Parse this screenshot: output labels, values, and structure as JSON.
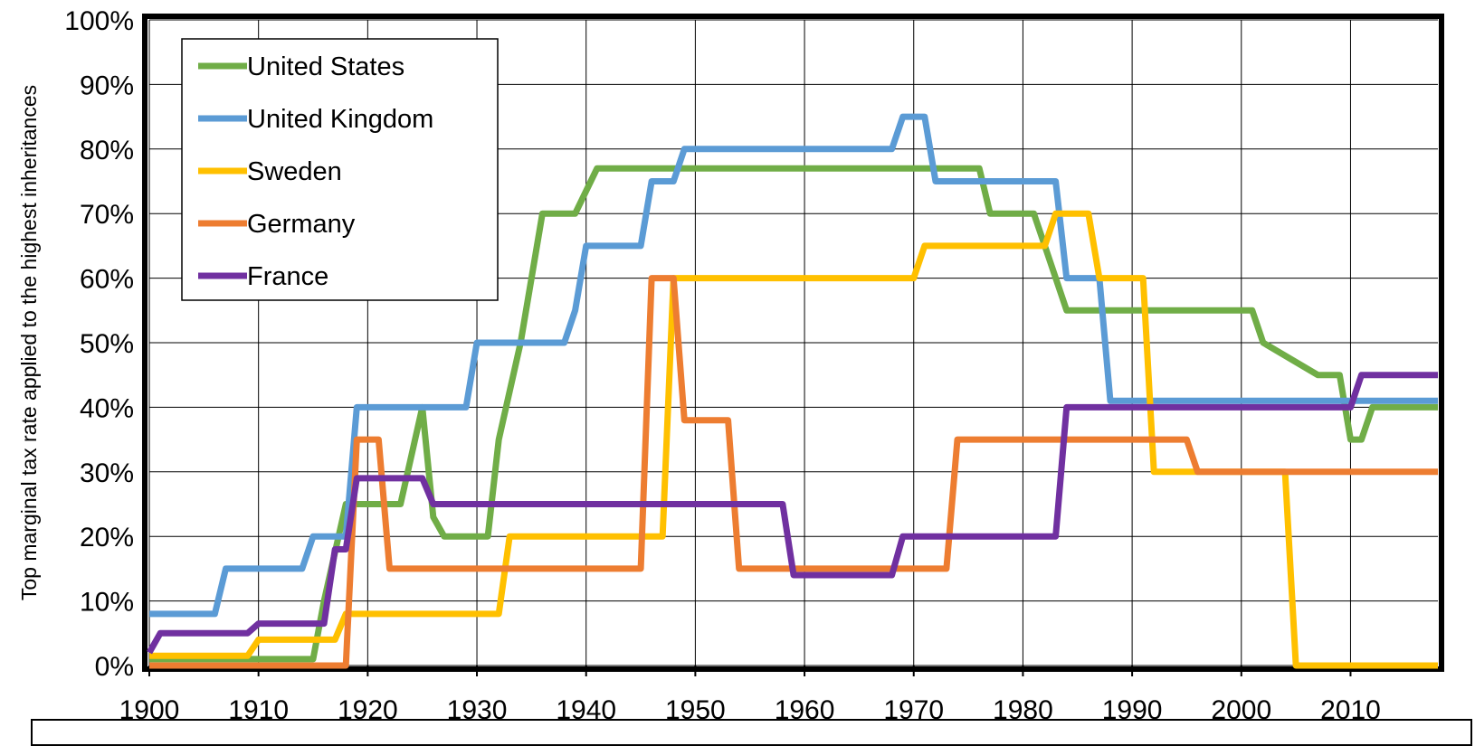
{
  "chart_data": {
    "type": "line",
    "title": "",
    "xlabel": "",
    "ylabel": "Top marginal tax rate applied to the highest inheritances",
    "xlim": [
      1900,
      2018
    ],
    "ylim": [
      0,
      1
    ],
    "x_ticks": [
      "1900",
      "1910",
      "1920",
      "1930",
      "1940",
      "1950",
      "1960",
      "1970",
      "1980",
      "1990",
      "2000",
      "2010"
    ],
    "y_ticks": [
      "0%",
      "10%",
      "20%",
      "30%",
      "40%",
      "50%",
      "60%",
      "70%",
      "80%",
      "90%",
      "100%"
    ],
    "grid": true,
    "legend_position": "top-left",
    "series": [
      {
        "name": "United States",
        "color": "#70AD47",
        "points": [
          [
            1900,
            0.01
          ],
          [
            1915,
            0.01
          ],
          [
            1916,
            0.1
          ],
          [
            1918,
            0.25
          ],
          [
            1923,
            0.25
          ],
          [
            1925,
            0.4
          ],
          [
            1926,
            0.23
          ],
          [
            1927,
            0.2
          ],
          [
            1931,
            0.2
          ],
          [
            1932,
            0.35
          ],
          [
            1934,
            0.5
          ],
          [
            1936,
            0.7
          ],
          [
            1939,
            0.7
          ],
          [
            1941,
            0.77
          ],
          [
            1976,
            0.77
          ],
          [
            1977,
            0.7
          ],
          [
            1981,
            0.7
          ],
          [
            1982,
            0.65
          ],
          [
            1984,
            0.55
          ],
          [
            2001,
            0.55
          ],
          [
            2002,
            0.5
          ],
          [
            2007,
            0.45
          ],
          [
            2009,
            0.45
          ],
          [
            2010,
            0.35
          ],
          [
            2011,
            0.35
          ],
          [
            2012,
            0.4
          ],
          [
            2018,
            0.4
          ]
        ]
      },
      {
        "name": "United Kingdom",
        "color": "#5B9BD5",
        "points": [
          [
            1900,
            0.08
          ],
          [
            1906,
            0.08
          ],
          [
            1907,
            0.15
          ],
          [
            1914,
            0.15
          ],
          [
            1915,
            0.2
          ],
          [
            1918,
            0.2
          ],
          [
            1919,
            0.4
          ],
          [
            1929,
            0.4
          ],
          [
            1930,
            0.5
          ],
          [
            1938,
            0.5
          ],
          [
            1939,
            0.55
          ],
          [
            1940,
            0.65
          ],
          [
            1945,
            0.65
          ],
          [
            1946,
            0.75
          ],
          [
            1948,
            0.75
          ],
          [
            1949,
            0.8
          ],
          [
            1968,
            0.8
          ],
          [
            1969,
            0.85
          ],
          [
            1971,
            0.85
          ],
          [
            1972,
            0.75
          ],
          [
            1983,
            0.75
          ],
          [
            1984,
            0.6
          ],
          [
            1987,
            0.6
          ],
          [
            1988,
            0.41
          ],
          [
            2018,
            0.41
          ]
        ]
      },
      {
        "name": "Sweden",
        "color": "#FFC000",
        "points": [
          [
            1900,
            0.015
          ],
          [
            1909,
            0.015
          ],
          [
            1910,
            0.04
          ],
          [
            1917,
            0.04
          ],
          [
            1918,
            0.08
          ],
          [
            1932,
            0.08
          ],
          [
            1933,
            0.2
          ],
          [
            1947,
            0.2
          ],
          [
            1948,
            0.6
          ],
          [
            1970,
            0.6
          ],
          [
            1971,
            0.65
          ],
          [
            1982,
            0.65
          ],
          [
            1983,
            0.7
          ],
          [
            1986,
            0.7
          ],
          [
            1987,
            0.6
          ],
          [
            1991,
            0.6
          ],
          [
            1992,
            0.3
          ],
          [
            2004,
            0.3
          ],
          [
            2005,
            0.0
          ],
          [
            2018,
            0.0
          ]
        ]
      },
      {
        "name": "Germany",
        "color": "#ED7D31",
        "points": [
          [
            1900,
            0.0
          ],
          [
            1918,
            0.0
          ],
          [
            1919,
            0.35
          ],
          [
            1921,
            0.35
          ],
          [
            1922,
            0.15
          ],
          [
            1945,
            0.15
          ],
          [
            1946,
            0.6
          ],
          [
            1948,
            0.6
          ],
          [
            1949,
            0.38
          ],
          [
            1953,
            0.38
          ],
          [
            1954,
            0.15
          ],
          [
            1973,
            0.15
          ],
          [
            1974,
            0.35
          ],
          [
            1995,
            0.35
          ],
          [
            1996,
            0.3
          ],
          [
            2018,
            0.3
          ]
        ]
      },
      {
        "name": "France",
        "color": "#7030A0",
        "points": [
          [
            1900,
            0.02
          ],
          [
            1901,
            0.05
          ],
          [
            1909,
            0.05
          ],
          [
            1910,
            0.065
          ],
          [
            1916,
            0.065
          ],
          [
            1917,
            0.18
          ],
          [
            1918,
            0.18
          ],
          [
            1919,
            0.29
          ],
          [
            1925,
            0.29
          ],
          [
            1926,
            0.25
          ],
          [
            1958,
            0.25
          ],
          [
            1959,
            0.14
          ],
          [
            1968,
            0.14
          ],
          [
            1969,
            0.2
          ],
          [
            1983,
            0.2
          ],
          [
            1984,
            0.4
          ],
          [
            2010,
            0.4
          ],
          [
            2011,
            0.45
          ],
          [
            2018,
            0.45
          ]
        ]
      }
    ]
  }
}
